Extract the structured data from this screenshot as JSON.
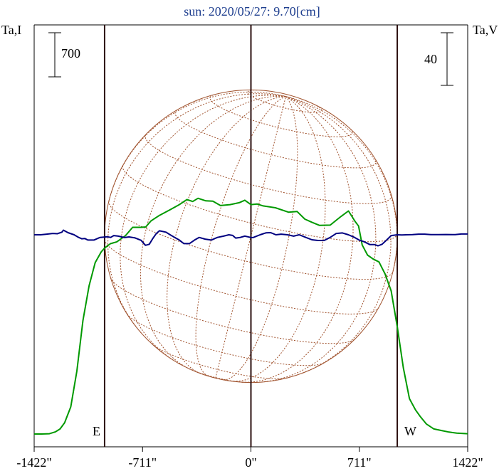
{
  "chart_data": {
    "type": "line",
    "title": "sun: 2020/05/27: 9.70[cm]",
    "left_axis_label": "Ta,I",
    "right_axis_label": "Ta,V",
    "left_scale_bar": "700",
    "right_scale_bar": "40",
    "east_label": "E",
    "west_label": "W",
    "x_ticks": [
      {
        "value": -1422,
        "label": "-1422\""
      },
      {
        "value": -711,
        "label": "-711\""
      },
      {
        "value": 0,
        "label": "0\""
      },
      {
        "value": 711,
        "label": "711\""
      },
      {
        "value": 1422,
        "label": "1422\""
      }
    ],
    "xlim": [
      -1422,
      1422
    ],
    "limb_x": [
      -960,
      960
    ],
    "solar_disk_radius": 960,
    "grid": false,
    "colors": {
      "title": "#1f3f8f",
      "intensity": "#009900",
      "polarization": "#000080",
      "disk": "#a0522d",
      "vertical_lines": "#2b0f0f"
    },
    "series": [
      {
        "name": "I",
        "axis": "left",
        "x": [
          -1422,
          -1372,
          -1322,
          -1282,
          -1252,
          -1222,
          -1182,
          -1142,
          -1102,
          -1062,
          -1022,
          -982,
          -960,
          -922,
          -880,
          -822,
          -776,
          -720,
          -690,
          -656,
          -600,
          -530,
          -470,
          -420,
          -382,
          -347,
          -296,
          -250,
          -200,
          -137,
          -77,
          -40,
          0,
          40,
          80,
          160,
          246,
          303,
          354,
          400,
          450,
          520,
          590,
          640,
          684,
          706,
          730,
          765,
          800,
          840,
          880,
          920,
          960,
          1000,
          1040,
          1080,
          1110,
          1150,
          1200,
          1250,
          1300,
          1350,
          1422
        ],
        "y": [
          0,
          0,
          5,
          35,
          80,
          180,
          430,
          1000,
          1800,
          2350,
          2720,
          2890,
          2950,
          3020,
          3050,
          3150,
          3280,
          3280,
          3285,
          3380,
          3470,
          3560,
          3640,
          3720,
          3690,
          3740,
          3700,
          3695,
          3625,
          3640,
          3670,
          3710,
          3640,
          3650,
          3620,
          3590,
          3520,
          3530,
          3410,
          3360,
          3310,
          3315,
          3450,
          3540,
          3370,
          3300,
          3000,
          2840,
          2780,
          2730,
          2540,
          2270,
          1700,
          1050,
          560,
          380,
          280,
          160,
          80,
          55,
          30,
          15,
          5
        ]
      },
      {
        "name": "V",
        "axis": "right",
        "x": [
          -1422,
          -1380,
          -1340,
          -1300,
          -1270,
          -1240,
          -1230,
          -1200,
          -1160,
          -1130,
          -1110,
          -1090,
          -1070,
          -1030,
          -990,
          -940,
          -920,
          -900,
          -870,
          -830,
          -800,
          -760,
          -720,
          -692,
          -667,
          -645,
          -620,
          -600,
          -557,
          -530,
          -500,
          -470,
          -440,
          -404,
          -370,
          -340,
          -300,
          -260,
          -220,
          -180,
          -145,
          -120,
          -100,
          -70,
          -40,
          -20,
          0,
          17,
          60,
          100,
          130,
          164,
          198,
          240,
          280,
          316,
          340,
          360,
          400,
          440,
          480,
          520,
          560,
          600,
          640,
          680,
          710,
          743,
          780,
          810,
          834,
          860,
          890,
          920,
          960,
          990,
          1020,
          1060,
          1100,
          1140,
          1180,
          1230,
          1280,
          1340,
          1380,
          1422
        ],
        "y": [
          0,
          0,
          0.5,
          1,
          0.8,
          2,
          3.5,
          1.6,
          0,
          -2,
          -3,
          -2.8,
          -4,
          -4,
          -2,
          -1.5,
          -2,
          -0.6,
          -1,
          -2.1,
          -1.6,
          -2.4,
          -4.2,
          -8,
          -7.2,
          -3,
          1,
          3,
          2,
          0,
          -2,
          -4,
          -6.7,
          -6.7,
          -4,
          -2,
          -3.3,
          -4,
          -2,
          -1,
          0,
          -0.5,
          -2.5,
          -2,
          -1,
          -1.5,
          -2.1,
          -2,
          0,
          1.5,
          1.6,
          0,
          0.5,
          0,
          -1,
          0,
          -1,
          -2,
          -3.8,
          -4.3,
          -4.3,
          -2,
          1,
          1.4,
          0,
          -2,
          -4,
          -5.3,
          -7.4,
          -7.4,
          -8.4,
          -7.2,
          -4,
          -0.6,
          0,
          -0.1,
          0,
          0.1,
          0.5,
          0.5,
          0.1,
          0.1,
          0.2,
          0.1,
          0.6,
          0.6
        ]
      }
    ]
  }
}
